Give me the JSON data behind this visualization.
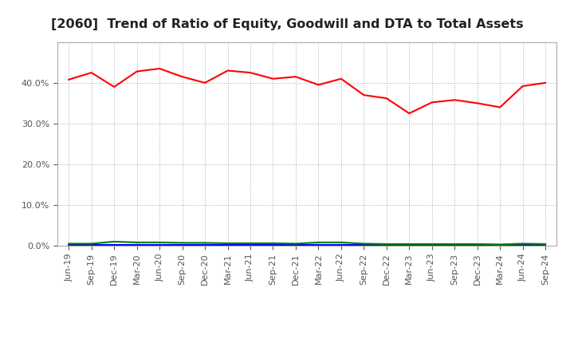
{
  "title": "[2060]  Trend of Ratio of Equity, Goodwill and DTA to Total Assets",
  "x_labels": [
    "Jun-19",
    "Sep-19",
    "Dec-19",
    "Mar-20",
    "Jun-20",
    "Sep-20",
    "Dec-20",
    "Mar-21",
    "Jun-21",
    "Sep-21",
    "Dec-21",
    "Mar-22",
    "Jun-22",
    "Sep-22",
    "Dec-22",
    "Mar-23",
    "Jun-23",
    "Sep-23",
    "Dec-23",
    "Mar-24",
    "Jun-24",
    "Sep-24"
  ],
  "equity": [
    0.408,
    0.425,
    0.39,
    0.428,
    0.435,
    0.415,
    0.4,
    0.43,
    0.425,
    0.41,
    0.415,
    0.395,
    0.41,
    0.37,
    0.362,
    0.325,
    0.352,
    0.358,
    0.35,
    0.34,
    0.392,
    0.4
  ],
  "goodwill": [
    0.001,
    0.001,
    0.001,
    0.001,
    0.001,
    0.001,
    0.001,
    0.001,
    0.001,
    0.001,
    0.001,
    0.001,
    0.001,
    0.001,
    0.001,
    0.001,
    0.001,
    0.001,
    0.001,
    0.001,
    0.001,
    0.001
  ],
  "dta": [
    0.005,
    0.005,
    0.01,
    0.008,
    0.008,
    0.007,
    0.007,
    0.006,
    0.006,
    0.006,
    0.005,
    0.008,
    0.008,
    0.005,
    0.004,
    0.004,
    0.004,
    0.004,
    0.004,
    0.003,
    0.005,
    0.004
  ],
  "equity_color": "#FF0000",
  "goodwill_color": "#0000FF",
  "dta_color": "#008000",
  "ylim": [
    0.0,
    0.5
  ],
  "yticks": [
    0.0,
    0.1,
    0.2,
    0.3,
    0.4
  ],
  "background_color": "#FFFFFF",
  "grid_color": "#AAAAAA",
  "title_fontsize": 11.5,
  "legend_fontsize": 9,
  "tick_fontsize": 8
}
